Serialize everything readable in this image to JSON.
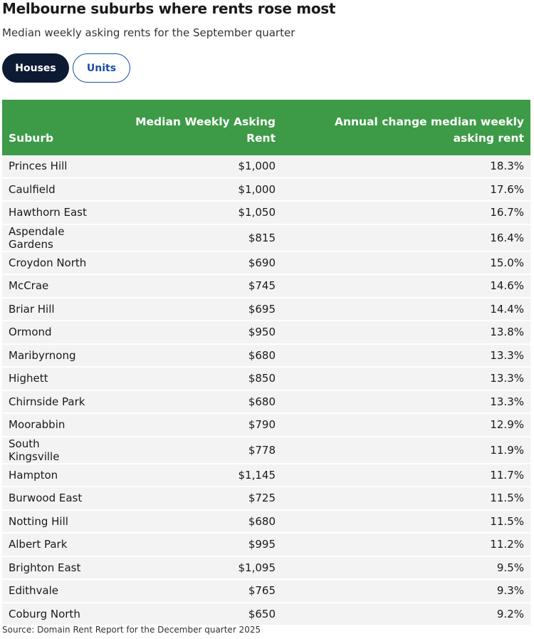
{
  "header": {
    "title": "Melbourne suburbs where rents rose most",
    "subtitle": "Median weekly asking rents for the September quarter"
  },
  "tabs": [
    "Houses",
    "Units"
  ],
  "table": {
    "columns": [
      "Suburb",
      "Median Weekly Asking Rent",
      "Annual change median weekly asking rent"
    ],
    "rows": [
      [
        "Princes Hill",
        "$1,000",
        "18.3%"
      ],
      [
        "Caulfield",
        "$1,000",
        "17.6%"
      ],
      [
        "Hawthorn East",
        "$1,050",
        "16.7%"
      ],
      [
        "Aspendale Gardens",
        "$815",
        "16.4%"
      ],
      [
        "Croydon North",
        "$690",
        "15.0%"
      ],
      [
        "McCrae",
        "$745",
        "14.6%"
      ],
      [
        "Briar Hill",
        "$695",
        "14.4%"
      ],
      [
        "Ormond",
        "$950",
        "13.8%"
      ],
      [
        "Maribyrnong",
        "$680",
        "13.3%"
      ],
      [
        "Highett",
        "$850",
        "13.3%"
      ],
      [
        "Chirnside Park",
        "$680",
        "13.3%"
      ],
      [
        "Moorabbin",
        "$790",
        "12.9%"
      ],
      [
        "South Kingsville",
        "$778",
        "11.9%"
      ],
      [
        "Hampton",
        "$1,145",
        "11.7%"
      ],
      [
        "Burwood East",
        "$725",
        "11.5%"
      ],
      [
        "Notting Hill",
        "$680",
        "11.5%"
      ],
      [
        "Albert Park",
        "$995",
        "11.2%"
      ],
      [
        "Brighton East",
        "$1,095",
        "9.5%"
      ],
      [
        "Edithvale",
        "$765",
        "9.3%"
      ],
      [
        "Coburg North",
        "$650",
        "9.2%"
      ]
    ]
  },
  "source": "Source: Domain Rent Report for the December quarter 2025"
}
